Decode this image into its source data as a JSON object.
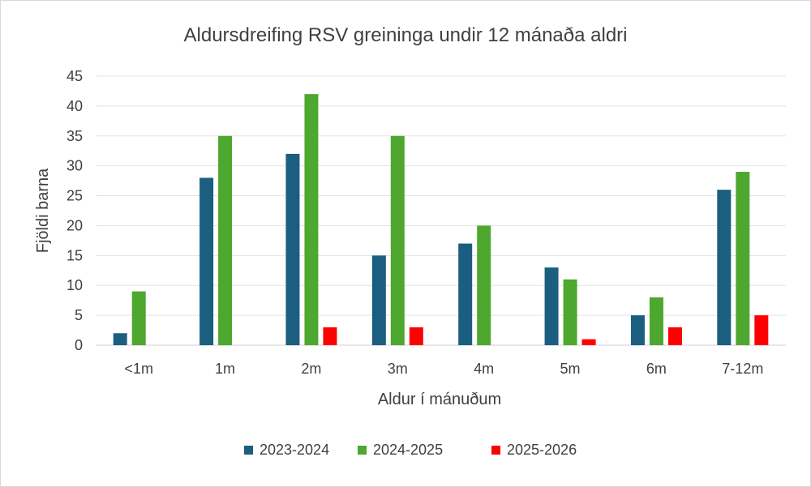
{
  "chart_data": {
    "type": "bar",
    "title": "Aldursdreifing RSV greininga undir 12 mánaða aldri",
    "xlabel": "Aldur í mánuðum",
    "ylabel": "Fjöldi barna",
    "categories": [
      "<1m",
      "1m",
      "2m",
      "3m",
      "4m",
      "5m",
      "6m",
      "7-12m"
    ],
    "ylim": [
      0,
      45
    ],
    "yticks": [
      0,
      5,
      10,
      15,
      20,
      25,
      30,
      35,
      40,
      45
    ],
    "grid": true,
    "legend_position": "bottom",
    "series": [
      {
        "name": "2023-2024",
        "color": "#1b5e80",
        "values": [
          2,
          28,
          32,
          15,
          17,
          13,
          5,
          26
        ]
      },
      {
        "name": "2024-2025",
        "color": "#4ea72e",
        "values": [
          9,
          35,
          42,
          35,
          20,
          11,
          8,
          29
        ]
      },
      {
        "name": "2025-2026",
        "color": "#ff0000",
        "values": [
          0,
          0,
          3,
          3,
          0,
          1,
          3,
          5
        ]
      }
    ]
  }
}
